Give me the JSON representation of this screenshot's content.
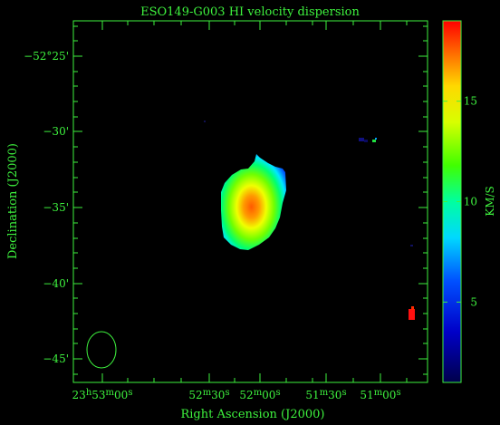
{
  "title": "ESO149-G003   HI velocity dispersion",
  "xlabel": "Right Ascension (J2000)",
  "ylabel": "Declination (J2000)",
  "colorbar_label": "KM/S",
  "ra_ticks": [
    {
      "h": "23",
      "m": "53",
      "s": "00"
    },
    {
      "m": "52",
      "s": "30"
    },
    {
      "m": "52",
      "s": "00"
    },
    {
      "m": "51",
      "s": "30"
    },
    {
      "m": "51",
      "s": "00"
    }
  ],
  "dec_ticks": [
    {
      "deg": "−52°",
      "min": "25'"
    },
    {
      "deg": "",
      "min": "−30'"
    },
    {
      "deg": "",
      "min": "−35'"
    },
    {
      "deg": "",
      "min": "−40'"
    },
    {
      "deg": "",
      "min": "−45'"
    }
  ],
  "colorbar_ticks": [
    "15",
    "10",
    "5"
  ],
  "colorbar_tick_values": [
    15,
    10,
    5
  ],
  "colorbar_range": [
    1,
    19
  ],
  "colors": {
    "axes": "#3ef23e",
    "background": "#000000"
  }
}
